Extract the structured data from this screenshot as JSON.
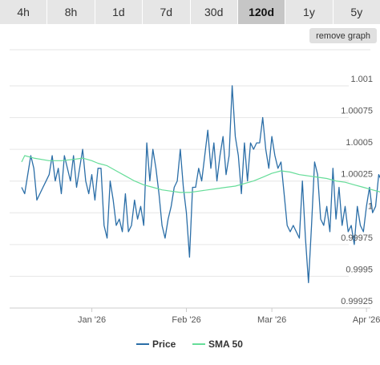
{
  "range_tabs": [
    {
      "label": "4h",
      "active": false
    },
    {
      "label": "8h",
      "active": false
    },
    {
      "label": "1d",
      "active": false
    },
    {
      "label": "7d",
      "active": false
    },
    {
      "label": "30d",
      "active": false
    },
    {
      "label": "120d",
      "active": true
    },
    {
      "label": "1y",
      "active": false
    },
    {
      "label": "5y",
      "active": false
    }
  ],
  "remove_graph_label": "remove graph",
  "colors": {
    "price": "#2b6ea7",
    "sma": "#66dd99",
    "grid": "#e6e6e6",
    "tab_bg": "#e6e6e6",
    "tab_active_bg": "#c6c6c6"
  },
  "chart_data": {
    "type": "line",
    "x_range": [
      "2025-12-09",
      "2026-04-07"
    ],
    "ylim": [
      0.99925,
      1.00105
    ],
    "grid": true,
    "legend_position": "bottom-center",
    "x_ticks": [
      {
        "date": "2026-01-01",
        "label": "Jan '26"
      },
      {
        "date": "2026-02-01",
        "label": "Feb '26"
      },
      {
        "date": "2026-03-01",
        "label": "Mar '26"
      },
      {
        "date": "2026-04-01",
        "label": "Apr '26"
      }
    ],
    "y_ticks": [
      {
        "value": 1.001,
        "label": "1.001"
      },
      {
        "value": 1.00075,
        "label": "1.00075"
      },
      {
        "value": 1.0005,
        "label": "1.0005"
      },
      {
        "value": 1.00025,
        "label": "1.00025"
      },
      {
        "value": 1.0,
        "label": "1"
      },
      {
        "value": 0.99975,
        "label": "0.99975"
      },
      {
        "value": 0.9995,
        "label": "0.9995"
      },
      {
        "value": 0.99925,
        "label": "0.99925"
      }
    ],
    "series": [
      {
        "name": "Price",
        "points": [
          [
            "2025-12-09",
            1.00015
          ],
          [
            "2025-12-10",
            1.0001
          ],
          [
            "2025-12-12",
            1.0004
          ],
          [
            "2025-12-13",
            1.0003
          ],
          [
            "2025-12-14",
            1.00005
          ],
          [
            "2025-12-16",
            1.00015
          ],
          [
            "2025-12-17",
            1.0002
          ],
          [
            "2025-12-18",
            1.00025
          ],
          [
            "2025-12-19",
            1.0004
          ],
          [
            "2025-12-20",
            1.0002
          ],
          [
            "2025-12-21",
            1.0003
          ],
          [
            "2025-12-22",
            1.0001
          ],
          [
            "2025-12-23",
            1.0004
          ],
          [
            "2025-12-25",
            1.0002
          ],
          [
            "2025-12-26",
            1.0004
          ],
          [
            "2025-12-27",
            1.00015
          ],
          [
            "2025-12-28",
            1.0003
          ],
          [
            "2025-12-29",
            1.00045
          ],
          [
            "2025-12-30",
            1.0002
          ],
          [
            "2025-12-31",
            1.0001
          ],
          [
            "2026-01-01",
            1.00025
          ],
          [
            "2026-01-02",
            1.00005
          ],
          [
            "2026-01-03",
            1.0003
          ],
          [
            "2026-01-04",
            1.0003
          ],
          [
            "2026-01-05",
            0.99985
          ],
          [
            "2026-01-06",
            0.99975
          ],
          [
            "2026-01-07",
            1.0002
          ],
          [
            "2026-01-08",
            1.00005
          ],
          [
            "2026-01-09",
            0.99985
          ],
          [
            "2026-01-10",
            0.9999
          ],
          [
            "2026-01-11",
            0.9998
          ],
          [
            "2026-01-12",
            1.0001
          ],
          [
            "2026-01-13",
            0.9998
          ],
          [
            "2026-01-14",
            0.99985
          ],
          [
            "2026-01-15",
            1.00005
          ],
          [
            "2026-01-16",
            0.9999
          ],
          [
            "2026-01-17",
            1.0
          ],
          [
            "2026-01-18",
            0.99985
          ],
          [
            "2026-01-19",
            1.0005
          ],
          [
            "2026-01-20",
            1.0002
          ],
          [
            "2026-01-21",
            1.00045
          ],
          [
            "2026-01-22",
            1.0003
          ],
          [
            "2026-01-23",
            1.0001
          ],
          [
            "2026-01-24",
            0.99985
          ],
          [
            "2026-01-25",
            0.99975
          ],
          [
            "2026-01-26",
            0.9999
          ],
          [
            "2026-01-27",
            1.0
          ],
          [
            "2026-01-28",
            1.00015
          ],
          [
            "2026-01-29",
            1.0002
          ],
          [
            "2026-01-30",
            1.00045
          ],
          [
            "2026-01-31",
            1.00015
          ],
          [
            "2026-02-01",
            0.99995
          ],
          [
            "2026-02-02",
            0.9996
          ],
          [
            "2026-02-03",
            1.00015
          ],
          [
            "2026-02-04",
            1.00015
          ],
          [
            "2026-02-05",
            1.0003
          ],
          [
            "2026-02-06",
            1.0002
          ],
          [
            "2026-02-07",
            1.0004
          ],
          [
            "2026-02-08",
            1.0006
          ],
          [
            "2026-02-09",
            1.0003
          ],
          [
            "2026-02-10",
            1.0005
          ],
          [
            "2026-02-11",
            1.0002
          ],
          [
            "2026-02-12",
            1.0004
          ],
          [
            "2026-02-13",
            1.00055
          ],
          [
            "2026-02-14",
            1.00025
          ],
          [
            "2026-02-15",
            1.0004
          ],
          [
            "2026-02-16",
            1.00095
          ],
          [
            "2026-02-17",
            1.00055
          ],
          [
            "2026-02-18",
            1.0004
          ],
          [
            "2026-02-19",
            1.0001
          ],
          [
            "2026-02-20",
            1.0005
          ],
          [
            "2026-02-21",
            1.0002
          ],
          [
            "2026-02-22",
            1.0005
          ],
          [
            "2026-02-23",
            1.00045
          ],
          [
            "2026-02-24",
            1.0005
          ],
          [
            "2026-02-25",
            1.0005
          ],
          [
            "2026-02-26",
            1.0007
          ],
          [
            "2026-02-27",
            1.00045
          ],
          [
            "2026-02-28",
            1.0003
          ],
          [
            "2026-03-01",
            1.00055
          ],
          [
            "2026-03-02",
            1.0004
          ],
          [
            "2026-03-03",
            1.0003
          ],
          [
            "2026-03-04",
            1.00035
          ],
          [
            "2026-03-05",
            1.0001
          ],
          [
            "2026-03-06",
            0.99985
          ],
          [
            "2026-03-07",
            0.9998
          ],
          [
            "2026-03-08",
            0.99985
          ],
          [
            "2026-03-09",
            0.9998
          ],
          [
            "2026-03-10",
            0.99975
          ],
          [
            "2026-03-11",
            1.0002
          ],
          [
            "2026-03-12",
            0.99975
          ],
          [
            "2026-03-13",
            0.9994
          ],
          [
            "2026-03-14",
            0.99985
          ],
          [
            "2026-03-15",
            1.00035
          ],
          [
            "2026-03-16",
            1.00025
          ],
          [
            "2026-03-17",
            0.9999
          ],
          [
            "2026-03-18",
            0.99985
          ],
          [
            "2026-03-19",
            1.0
          ],
          [
            "2026-03-20",
            0.9998
          ],
          [
            "2026-03-21",
            1.0003
          ],
          [
            "2026-03-22",
            0.9999
          ],
          [
            "2026-03-23",
            1.00015
          ],
          [
            "2026-03-24",
            0.99985
          ],
          [
            "2026-03-25",
            1.0
          ],
          [
            "2026-03-26",
            0.9998
          ],
          [
            "2026-03-27",
            0.99985
          ],
          [
            "2026-03-28",
            0.9997
          ],
          [
            "2026-03-29",
            1.0
          ],
          [
            "2026-03-30",
            0.99985
          ],
          [
            "2026-03-31",
            0.9998
          ],
          [
            "2026-04-01",
            1.0
          ],
          [
            "2026-04-02",
            1.00015
          ],
          [
            "2026-04-03",
            0.99995
          ],
          [
            "2026-04-04",
            1.0
          ],
          [
            "2026-04-05",
            1.00025
          ],
          [
            "2026-04-06",
            1.0002
          ],
          [
            "2026-04-07",
            1.0
          ],
          [
            "2026-04-08",
            1.0008
          ],
          [
            "2026-04-09",
            1.0006
          ]
        ]
      },
      {
        "name": "SMA 50",
        "points": [
          [
            "2025-12-09",
            1.00035
          ],
          [
            "2025-12-10",
            1.0004
          ],
          [
            "2025-12-13",
            1.00038
          ],
          [
            "2025-12-18",
            1.00036
          ],
          [
            "2025-12-22",
            1.00036
          ],
          [
            "2025-12-26",
            1.00037
          ],
          [
            "2025-12-29",
            1.00038
          ],
          [
            "2026-01-01",
            1.00036
          ],
          [
            "2026-01-03",
            1.00034
          ],
          [
            "2026-01-06",
            1.00032
          ],
          [
            "2026-01-09",
            1.00028
          ],
          [
            "2026-01-12",
            1.00024
          ],
          [
            "2026-01-15",
            1.0002
          ],
          [
            "2026-01-18",
            1.00017
          ],
          [
            "2026-01-21",
            1.00015
          ],
          [
            "2026-01-24",
            1.00013
          ],
          [
            "2026-01-27",
            1.00012
          ],
          [
            "2026-01-30",
            1.00011
          ],
          [
            "2026-02-02",
            1.00011
          ],
          [
            "2026-02-05",
            1.00012
          ],
          [
            "2026-02-08",
            1.00013
          ],
          [
            "2026-02-11",
            1.00014
          ],
          [
            "2026-02-14",
            1.00015
          ],
          [
            "2026-02-17",
            1.00016
          ],
          [
            "2026-02-20",
            1.00018
          ],
          [
            "2026-02-23",
            1.0002
          ],
          [
            "2026-02-26",
            1.00023
          ],
          [
            "2026-03-01",
            1.00026
          ],
          [
            "2026-03-04",
            1.00028
          ],
          [
            "2026-03-07",
            1.00027
          ],
          [
            "2026-03-10",
            1.00025
          ],
          [
            "2026-03-13",
            1.00024
          ],
          [
            "2026-03-16",
            1.00023
          ],
          [
            "2026-03-19",
            1.00022
          ],
          [
            "2026-03-22",
            1.0002
          ],
          [
            "2026-03-25",
            1.00019
          ],
          [
            "2026-03-28",
            1.00017
          ],
          [
            "2026-03-31",
            1.00015
          ],
          [
            "2026-04-03",
            1.00013
          ],
          [
            "2026-04-06",
            1.00011
          ],
          [
            "2026-04-09",
            1.0001
          ]
        ]
      }
    ]
  }
}
